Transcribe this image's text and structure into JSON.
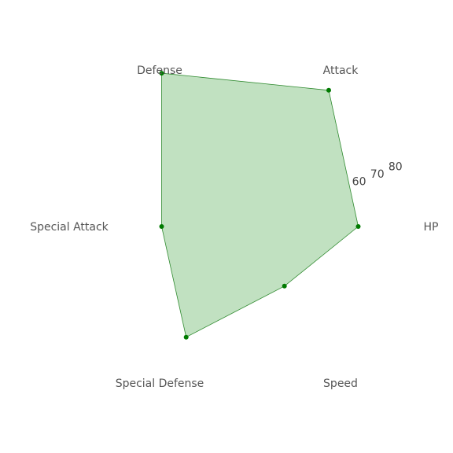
{
  "chart_data": {
    "type": "radar",
    "title": "",
    "axes": [
      "HP",
      "Attack",
      "Defense",
      "Special Attack",
      "Special Defense",
      "Speed"
    ],
    "series": [
      {
        "values": [
          55,
          80,
          90,
          45,
          65,
          35
        ]
      }
    ],
    "rlim": [
      0,
      80
    ],
    "r_ticks": [
      10,
      20,
      30,
      40,
      50,
      60,
      70,
      80
    ],
    "grid": false,
    "colors": {
      "fill": "#c1e1c1",
      "stroke": "#2f8a2f",
      "marker": "#007a00"
    }
  }
}
